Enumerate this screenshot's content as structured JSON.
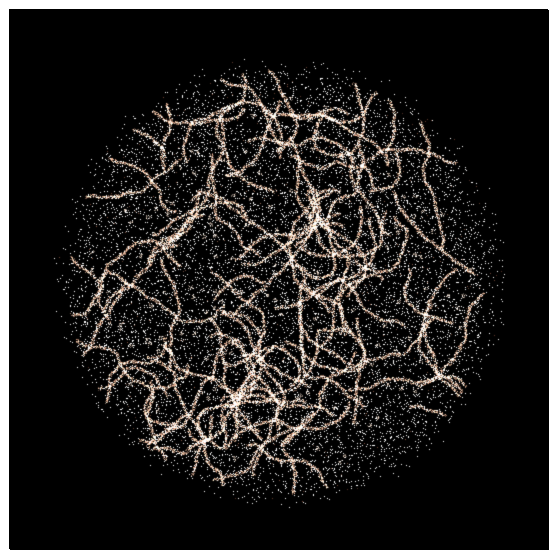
{
  "image": {
    "subject": "particle-sphere",
    "background_color": "#000000",
    "frame_color": "#ffffff",
    "palette": {
      "dim": "#6e3b2c",
      "mid": "#c98f74",
      "bright": "#f4cfb4",
      "highlight": "#ffe8d6"
    }
  }
}
